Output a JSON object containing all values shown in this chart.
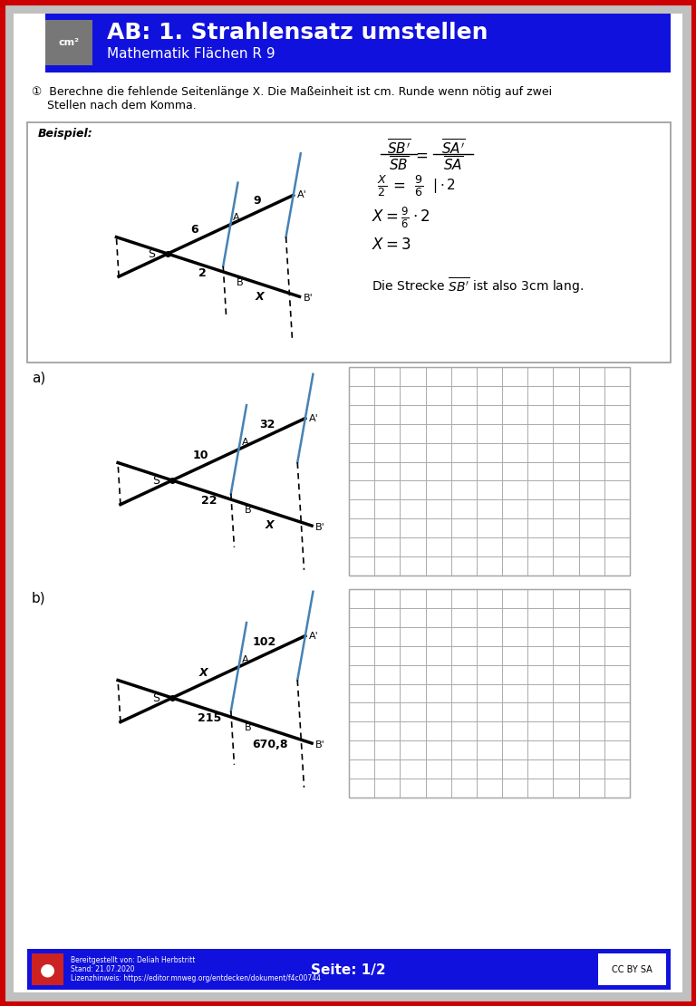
{
  "title": "AB: 1. Strahlensatz umstellen",
  "subtitle": "Mathematik Flächen R 9",
  "header_bg": "#0000EE",
  "header_icon_bg": "#888888",
  "header_icon_text": "cm²",
  "page_bg": "#CCCCCC",
  "content_bg": "#EEEEEE",
  "task_text": "① Berechne die fehlende Seitenlänge X. Die Maßeinheit ist cm. Runde wenn nötig auf zwei\nStellen nach dem Komma.",
  "beispiel_label": "Beispiel:",
  "footer_left": "Bereitgestellt von: Deliah Herbstritt\nStand: 21.07.2020\nLizenzhinweis: https://editor.mnweg.org/entdecken/dokument/f4c00744",
  "footer_center": "Seite: 1/2",
  "footer_bg": "#0000EE"
}
